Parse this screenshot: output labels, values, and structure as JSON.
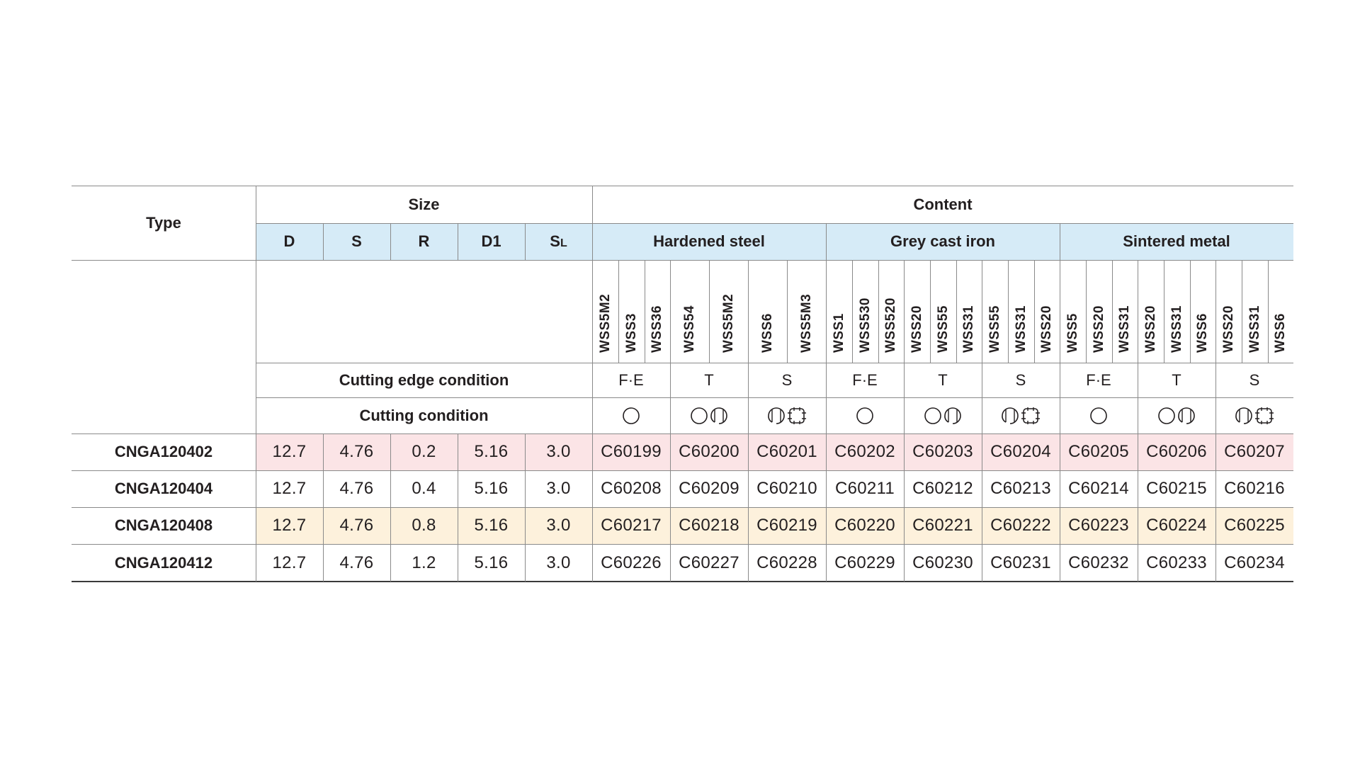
{
  "header": {
    "type_label": "Type",
    "size_label": "Size",
    "content_label": "Content",
    "size_cols": [
      "D",
      "S",
      "R",
      "D1",
      "S"
    ],
    "size_col_sub": "L",
    "groups": [
      "Hardened steel",
      "Grey cast iron",
      "Sintered metal"
    ],
    "cutting_edge_label": "Cutting edge condition",
    "cutting_condition_label": "Cutting condition"
  },
  "grades": [
    [
      "WSS5M2",
      "WSS3",
      "WSS36"
    ],
    [
      "WSS54",
      "WSS5M2"
    ],
    [
      "WSS6",
      "WSS5M3"
    ],
    [
      "WSS1",
      "WSS530",
      "WSS520"
    ],
    [
      "WSS20",
      "WSS55",
      "WSS31"
    ],
    [
      "WSS55",
      "WSS31",
      "WSS20"
    ],
    [
      "WSS5",
      "WSS20",
      "WSS31"
    ],
    [
      "WSS20",
      "WSS31",
      "WSS6"
    ],
    [
      "WSS20",
      "WSS31",
      "WSS6"
    ]
  ],
  "edge_conditions": [
    "F·E",
    "T",
    "S",
    "F·E",
    "T",
    "S",
    "F·E",
    "T",
    "S"
  ],
  "cutting_condition_icons": [
    [
      "circle-icon"
    ],
    [
      "circle-icon",
      "interrupted-icon"
    ],
    [
      "interrupted-icon",
      "heavy-interrupted-icon"
    ],
    [
      "circle-icon"
    ],
    [
      "circle-icon",
      "interrupted-icon"
    ],
    [
      "interrupted-icon",
      "heavy-interrupted-icon"
    ],
    [
      "circle-icon"
    ],
    [
      "circle-icon",
      "interrupted-icon"
    ],
    [
      "interrupted-icon",
      "heavy-interrupted-icon"
    ]
  ],
  "rows": [
    {
      "type": "CNGA120402",
      "D": "12.7",
      "S": "4.76",
      "R": "0.2",
      "D1": "5.16",
      "SL": "3.0",
      "codes": [
        "C60199",
        "C60200",
        "C60201",
        "C60202",
        "C60203",
        "C60204",
        "C60205",
        "C60206",
        "C60207"
      ]
    },
    {
      "type": "CNGA120404",
      "D": "12.7",
      "S": "4.76",
      "R": "0.4",
      "D1": "5.16",
      "SL": "3.0",
      "codes": [
        "C60208",
        "C60209",
        "C60210",
        "C60211",
        "C60212",
        "C60213",
        "C60214",
        "C60215",
        "C60216"
      ]
    },
    {
      "type": "CNGA120408",
      "D": "12.7",
      "S": "4.76",
      "R": "0.8",
      "D1": "5.16",
      "SL": "3.0",
      "codes": [
        "C60217",
        "C60218",
        "C60219",
        "C60220",
        "C60221",
        "C60222",
        "C60223",
        "C60224",
        "C60225"
      ]
    },
    {
      "type": "CNGA120412",
      "D": "12.7",
      "S": "4.76",
      "R": "1.2",
      "D1": "5.16",
      "SL": "3.0",
      "codes": [
        "C60226",
        "C60227",
        "C60228",
        "C60229",
        "C60230",
        "C60231",
        "C60232",
        "C60233",
        "C60234"
      ]
    }
  ],
  "colors": {
    "header_blue": "#d6ebf7",
    "row_pink": "#fbe4e6",
    "row_cream": "#fdf1dc"
  }
}
